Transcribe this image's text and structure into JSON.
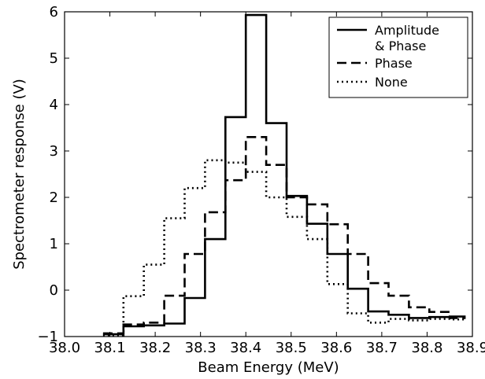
{
  "chart_data": {
    "type": "line",
    "title": "",
    "xlabel": "Beam Energy (MeV)",
    "ylabel": "Spectrometer response (V)",
    "xlim": [
      38.0,
      38.9
    ],
    "ylim": [
      -1,
      6
    ],
    "x_ticks": [
      "38.0",
      "38.1",
      "38.2",
      "38.3",
      "38.4",
      "38.5",
      "38.6",
      "38.7",
      "38.8",
      "38.9"
    ],
    "y_ticks": [
      "−1",
      "0",
      "1",
      "2",
      "3",
      "4",
      "5",
      "6"
    ],
    "grid": false,
    "legend_position": "top-right",
    "step_style": "bins",
    "series": [
      {
        "name_lines": [
          "Amplitude",
          "& Phase"
        ],
        "style": "solid",
        "edges": [
          38.085,
          38.13,
          38.175,
          38.22,
          38.265,
          38.31,
          38.355,
          38.4,
          38.445,
          38.49,
          38.535,
          38.58,
          38.625,
          38.67,
          38.715,
          38.76,
          38.805,
          38.85,
          38.885
        ],
        "values": [
          -0.95,
          -0.78,
          -0.76,
          -0.72,
          -0.17,
          1.1,
          3.73,
          5.93,
          3.6,
          2.03,
          1.43,
          0.78,
          0.03,
          -0.46,
          -0.53,
          -0.6,
          -0.58,
          -0.57
        ]
      },
      {
        "name_lines": [
          "Phase"
        ],
        "style": "dashed",
        "edges": [
          38.085,
          38.13,
          38.175,
          38.22,
          38.265,
          38.31,
          38.355,
          38.4,
          38.445,
          38.49,
          38.535,
          38.58,
          38.625,
          38.67,
          38.715,
          38.76,
          38.805,
          38.85,
          38.885
        ],
        "values": [
          -0.93,
          -0.74,
          -0.7,
          -0.12,
          0.78,
          1.68,
          2.37,
          3.3,
          2.7,
          2.0,
          1.85,
          1.42,
          0.78,
          0.15,
          -0.12,
          -0.37,
          -0.47,
          -0.6
        ]
      },
      {
        "name_lines": [
          "None"
        ],
        "style": "dotted",
        "edges": [
          38.085,
          38.13,
          38.175,
          38.22,
          38.265,
          38.31,
          38.355,
          38.4,
          38.445,
          38.49,
          38.535,
          38.58,
          38.625,
          38.67,
          38.715,
          38.76,
          38.805,
          38.85,
          38.885
        ],
        "values": [
          -0.97,
          -0.13,
          0.55,
          1.55,
          2.2,
          2.8,
          2.75,
          2.55,
          2.0,
          1.58,
          1.1,
          0.13,
          -0.5,
          -0.7,
          -0.62,
          -0.65,
          -0.62,
          -0.63
        ]
      }
    ]
  }
}
